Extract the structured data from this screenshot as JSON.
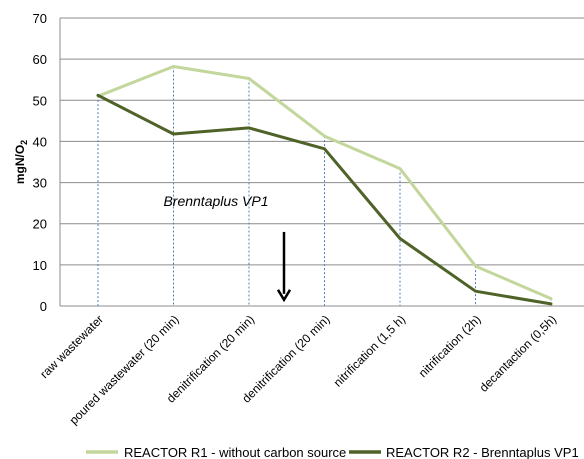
{
  "chart_data": {
    "type": "line",
    "title": "",
    "xlabel": "",
    "ylabel": "mgN/O",
    "ylabel_subscript": "2",
    "ylim": [
      0,
      70
    ],
    "yticks": [
      0,
      10,
      20,
      30,
      40,
      50,
      60,
      70
    ],
    "grid": "horizontal",
    "legend_position": "bottom",
    "categories": [
      "raw wastewater",
      "poured wastewater (20 min)",
      "denitrification (20 min)",
      "denitrification (20 min)",
      "nitrification (1,5 h)",
      "nitrification (2h)",
      "decantaction (0,5h)"
    ],
    "series": [
      {
        "name": "REACTOR R1 - without carbon source",
        "color": "#c3d69b",
        "values": [
          51,
          58.2,
          55.3,
          41.3,
          33.4,
          9.7,
          1.8
        ]
      },
      {
        "name": "REACTOR R2 - Brenntaplus VP1",
        "color": "#4f6228",
        "values": [
          51.2,
          41.8,
          43.3,
          38.2,
          16.4,
          3.6,
          0.5
        ]
      }
    ],
    "annotation": {
      "text": "Brenntaplus VP1",
      "arrow_at_category_index": 2,
      "arrow_from_value": 18,
      "arrow_to_value": 1.5
    }
  }
}
